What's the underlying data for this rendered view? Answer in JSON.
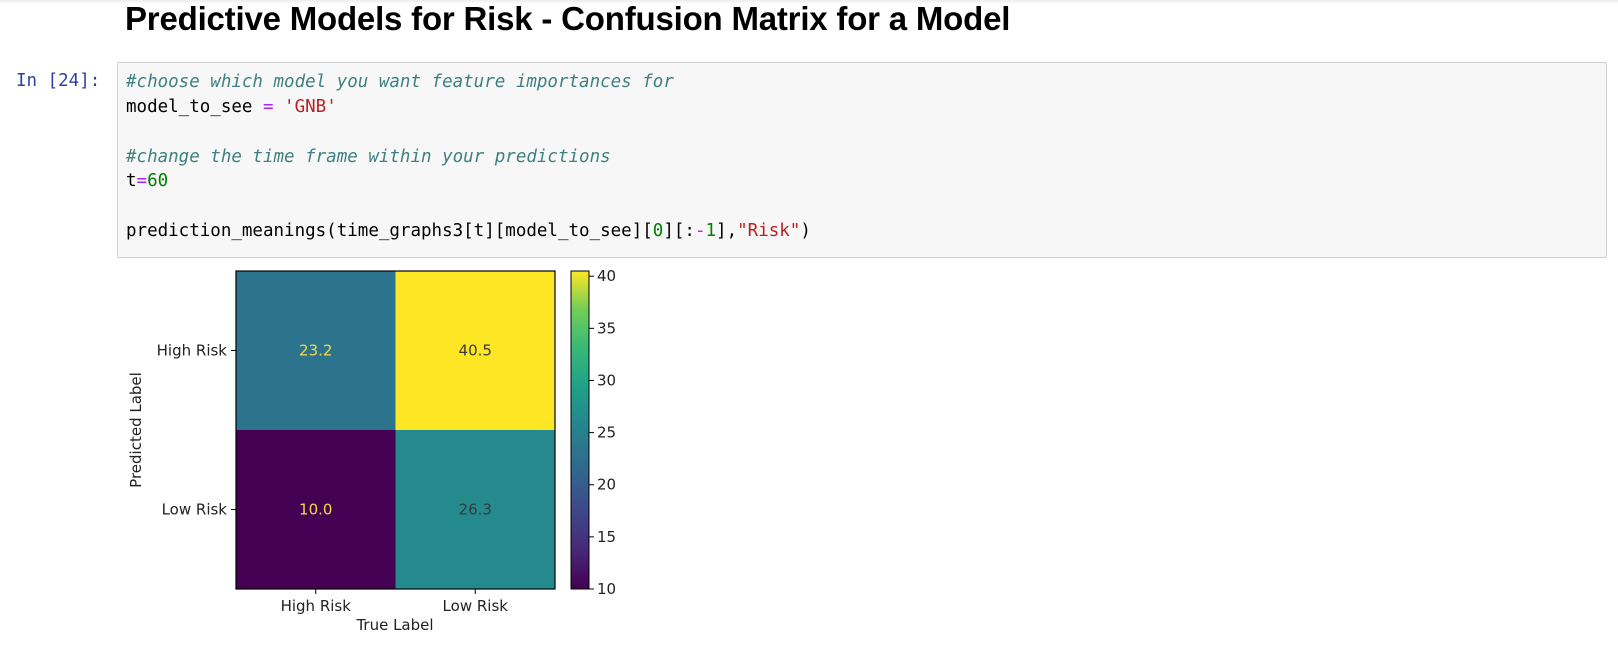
{
  "notebook": {
    "heading": "Predictive Models for Risk - Confusion Matrix for a Model",
    "cell": {
      "prompt": "In [24]:",
      "comment1": "#choose which model you want feature importances for",
      "var_model": "model_to_see",
      "eq1": " = ",
      "model_value": "'GNB'",
      "comment2": "#change the time frame within your predictions",
      "var_t": "t",
      "eq2": "=",
      "t_value": "60",
      "call_prefix": "prediction_meanings(time_graphs3[t][model_to_see][",
      "call_zero": "0",
      "call_mid": "][:",
      "call_minus": "-",
      "call_one": "1",
      "call_end": "],",
      "call_str": "\"Risk\"",
      "call_close": ")"
    }
  },
  "chart_data": {
    "type": "heatmap",
    "title": "",
    "xlabel": "True Label",
    "ylabel": "Predicted Label",
    "x_categories": [
      "High Risk",
      "Low Risk"
    ],
    "y_categories": [
      "High Risk",
      "Low Risk"
    ],
    "cells": [
      {
        "row": "High Risk",
        "col": "High Risk",
        "value": 23.2,
        "label": "23.2"
      },
      {
        "row": "High Risk",
        "col": "Low Risk",
        "value": 40.5,
        "label": "40.5"
      },
      {
        "row": "Low Risk",
        "col": "High Risk",
        "value": 10.0,
        "label": "10.0"
      },
      {
        "row": "Low Risk",
        "col": "Low Risk",
        "value": 26.3,
        "label": "26.3"
      }
    ],
    "colorbar": {
      "colormap": "viridis",
      "range": [
        10,
        40.5
      ],
      "ticks": [
        10,
        15,
        20,
        25,
        30,
        35,
        40
      ]
    },
    "grid": false
  }
}
